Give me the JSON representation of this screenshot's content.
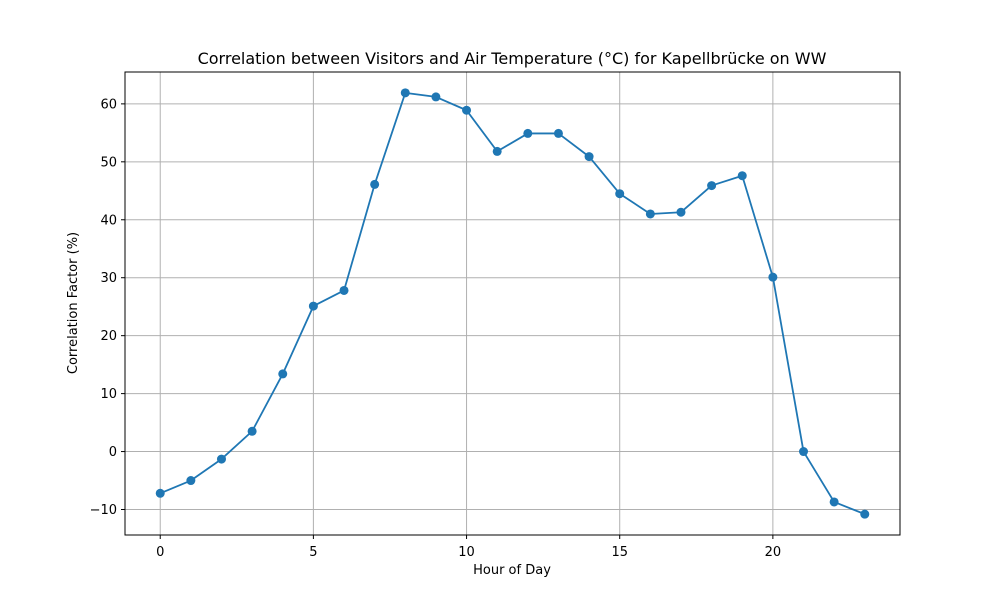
{
  "chart_data": {
    "type": "line",
    "title": "Correlation between Visitors and Air Temperature (°C) for Kapellbrücke on WW",
    "xlabel": "Hour of Day",
    "ylabel": "Correlation Factor (%)",
    "x": [
      0,
      1,
      2,
      3,
      4,
      5,
      6,
      7,
      8,
      9,
      10,
      11,
      12,
      13,
      14,
      15,
      16,
      17,
      18,
      19,
      20,
      21,
      22,
      23
    ],
    "series": [
      {
        "values": [
          -7.2,
          -5.0,
          -1.3,
          3.5,
          13.4,
          25.1,
          27.8,
          46.1,
          61.9,
          61.2,
          58.9,
          51.8,
          54.9,
          54.9,
          50.9,
          44.5,
          41.0,
          41.3,
          45.9,
          47.6,
          30.1,
          0.0,
          -8.7,
          -10.8
        ],
        "color": "#1f77b4",
        "marker": "circle"
      }
    ],
    "xlim": [
      -1.15,
      24.15
    ],
    "ylim": [
      -14.4,
      65.5
    ],
    "xticks": [
      0,
      5,
      10,
      15,
      20
    ],
    "xtick_labels": [
      "0",
      "5",
      "10",
      "15",
      "20"
    ],
    "yticks": [
      -10,
      0,
      10,
      20,
      30,
      40,
      50,
      60
    ],
    "ytick_labels": [
      "−10",
      "0",
      "10",
      "20",
      "30",
      "40",
      "50",
      "60"
    ],
    "grid": true,
    "grid_color": "#b0b0b0"
  }
}
